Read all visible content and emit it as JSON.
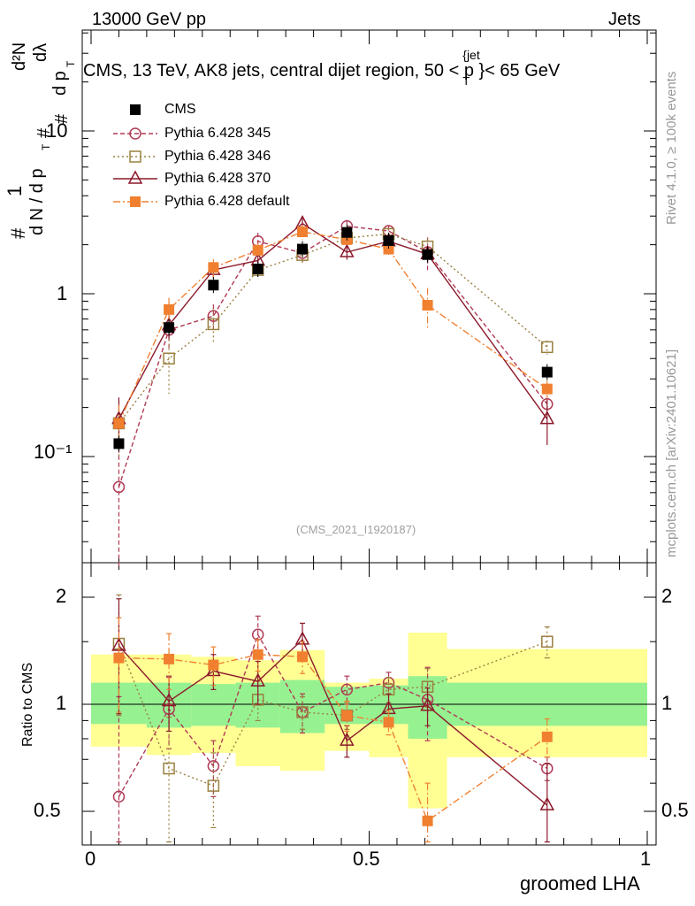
{
  "header": {
    "left": "13000 GeV pp",
    "right": "Jets"
  },
  "plot_title": "CMS, 13 TeV, AK8 jets, central dijet region, 50 <",
  "plot_title_var": "p",
  "plot_title_sup": "{jet",
  "plot_title_sub": "T",
  "plot_title_tail": "}< 65 GeV",
  "analysis_tag": "(CMS_2021_I1920187)",
  "side_labels": {
    "rivet": "Rivet 4.1.0, ≥ 100k events",
    "mcplots": "mcplots.cern.ch [arXiv:2401.10621]"
  },
  "y_title": {
    "num": "1",
    "den": "d N / d p",
    "frac2_num": "d²N",
    "frac2_den": "d p",
    "dlambda": "dλ",
    "hash": "#",
    "sub_T": "T"
  },
  "x_title": "groomed LHA",
  "ratio_y_title": "Ratio to CMS",
  "ticks": {
    "main_y": [
      "10⁻¹",
      "1",
      "10"
    ],
    "ratio_y": [
      "0.5",
      "1",
      "2"
    ],
    "x": [
      "0",
      "0.5",
      "1"
    ]
  },
  "legend": [
    {
      "label": "CMS",
      "color": "#000000",
      "marker": "square-filled",
      "dash": ""
    },
    {
      "label": "Pythia 6.428 345",
      "color": "#b03a55",
      "marker": "circle-open",
      "dash": "5,3"
    },
    {
      "label": "Pythia 6.428 346",
      "color": "#9a8040",
      "marker": "square-open",
      "dash": "2,3"
    },
    {
      "label": "Pythia 6.428 370",
      "color": "#8b1a2b",
      "marker": "triangle-open",
      "dash": ""
    },
    {
      "label": "Pythia 6.428 default",
      "color": "#f08030",
      "marker": "square-filled",
      "dash": "8,3,2,3"
    }
  ],
  "chart_data": {
    "type": "line",
    "xlabel": "groomed LHA",
    "ylabel": "1/(dN/dpT) d²N/(dpT dλ)",
    "xlim": [
      0,
      1
    ],
    "ylim": [
      0.02,
      50
    ],
    "yscale": "log",
    "ratio_ylim": [
      0.4,
      2.4
    ],
    "bin_edges": [
      0,
      0.1,
      0.18,
      0.26,
      0.34,
      0.42,
      0.5,
      0.57,
      0.64,
      1.0
    ],
    "data": {
      "name": "CMS",
      "x": [
        0.05,
        0.14,
        0.22,
        0.3,
        0.38,
        0.46,
        0.535,
        0.605,
        0.82
      ],
      "y": [
        0.12,
        0.62,
        1.13,
        1.42,
        1.88,
        2.38,
        2.12,
        1.74,
        0.33
      ],
      "band_stat": [
        [
          0.88,
          1.15
        ],
        [
          0.86,
          1.15
        ],
        [
          0.87,
          1.14
        ],
        [
          0.86,
          1.15
        ],
        [
          0.83,
          1.17
        ],
        [
          0.88,
          1.12
        ],
        [
          0.88,
          1.13
        ],
        [
          0.8,
          1.2
        ],
        [
          0.87,
          1.15
        ]
      ],
      "band_total": [
        [
          0.76,
          1.38
        ],
        [
          0.72,
          1.38
        ],
        [
          0.73,
          1.36
        ],
        [
          0.67,
          1.33
        ],
        [
          0.65,
          1.42
        ],
        [
          0.74,
          1.15
        ],
        [
          0.71,
          1.18
        ],
        [
          0.51,
          1.59
        ],
        [
          0.71,
          1.43
        ]
      ]
    },
    "series": [
      {
        "name": "Pythia 6.428 345",
        "y": [
          0.065,
          0.6,
          0.73,
          2.1,
          1.78,
          2.6,
          2.43,
          1.8,
          0.21
        ],
        "ratio": [
          0.55,
          0.97,
          0.67,
          1.57,
          0.95,
          1.1,
          1.15,
          1.03,
          0.66
        ],
        "ratio_err": [
          0.5,
          0.22,
          0.12,
          0.2,
          0.12,
          0.1,
          0.08,
          0.24,
          0.05
        ]
      },
      {
        "name": "Pythia 6.428 346",
        "y": [
          0.16,
          0.4,
          0.65,
          1.4,
          1.73,
          2.2,
          2.33,
          1.95,
          0.47
        ],
        "ratio": [
          1.48,
          0.66,
          0.59,
          1.03,
          0.95,
          0.93,
          1.1,
          1.12,
          1.5
        ],
        "ratio_err": [
          0.55,
          0.26,
          0.14,
          0.13,
          0.1,
          0.08,
          0.09,
          0.14,
          0.15
        ]
      },
      {
        "name": "Pythia 6.428 370",
        "y": [
          0.17,
          0.64,
          1.4,
          1.6,
          2.7,
          1.8,
          2.1,
          1.75,
          0.17
        ],
        "ratio": [
          1.46,
          1.02,
          1.24,
          1.16,
          1.52,
          0.79,
          0.97,
          0.99,
          0.52
        ],
        "ratio_err": [
          0.52,
          0.18,
          0.14,
          0.16,
          0.17,
          0.08,
          0.1,
          0.12,
          0.16
        ]
      },
      {
        "name": "Pythia 6.428 default",
        "y": [
          0.16,
          0.8,
          1.45,
          1.85,
          2.4,
          2.15,
          1.88,
          0.85,
          0.26
        ],
        "ratio": [
          1.35,
          1.34,
          1.29,
          1.38,
          1.36,
          0.93,
          0.89,
          0.47,
          0.81
        ],
        "ratio_err": [
          0.4,
          0.24,
          0.16,
          0.14,
          0.14,
          0.09,
          0.07,
          0.13,
          0.1
        ]
      }
    ]
  }
}
